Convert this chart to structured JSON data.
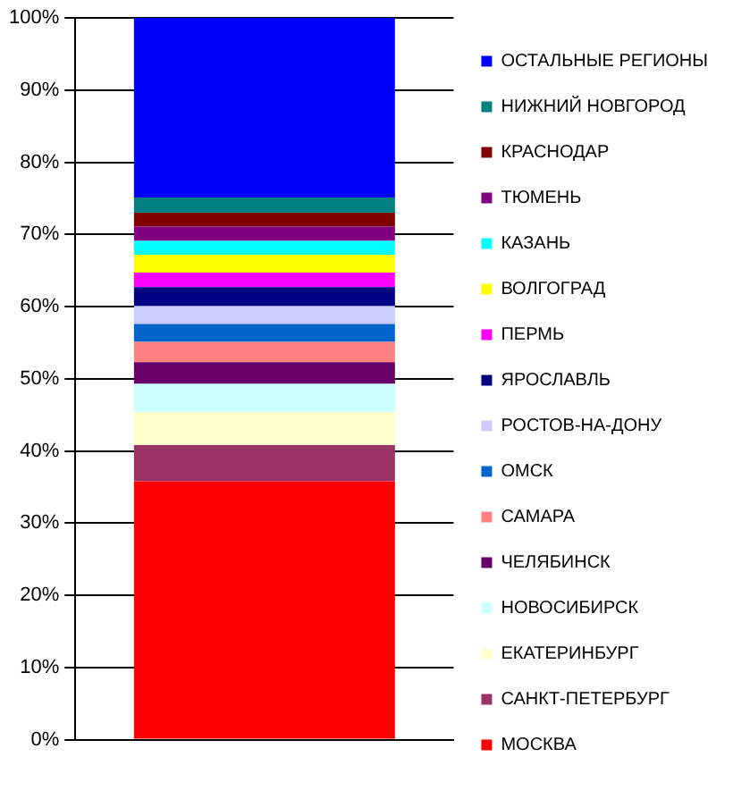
{
  "chart_data": {
    "type": "bar",
    "stacked": true,
    "categories": [
      null
    ],
    "series": [
      {
        "name": "МОСКВА",
        "color": "#ff0000",
        "values": [
          35.8
        ]
      },
      {
        "name": "САНКТ-ПЕТЕРБУРГ",
        "color": "#993366",
        "values": [
          5.0
        ]
      },
      {
        "name": "ЕКАТЕРИНБУРГ",
        "color": "#ffffcc",
        "values": [
          4.6
        ]
      },
      {
        "name": "НОВОСИБИРСК",
        "color": "#ccffff",
        "values": [
          3.9
        ]
      },
      {
        "name": "ЧЕЛЯБИНСК",
        "color": "#660066",
        "values": [
          3.0
        ]
      },
      {
        "name": "САМАРА",
        "color": "#ff8080",
        "values": [
          2.8
        ]
      },
      {
        "name": "ОМСК",
        "color": "#0066cc",
        "values": [
          2.5
        ]
      },
      {
        "name": "РОСТОВ-НА-ДОНУ",
        "color": "#ccccff",
        "values": [
          2.5
        ]
      },
      {
        "name": "ЯРОСЛАВЛЬ",
        "color": "#000080",
        "values": [
          2.6
        ]
      },
      {
        "name": "ПЕРМЬ",
        "color": "#ff00ff",
        "values": [
          2.0
        ]
      },
      {
        "name": "ВОЛГОГРАД",
        "color": "#ffff00",
        "values": [
          2.5
        ]
      },
      {
        "name": "КАЗАНЬ",
        "color": "#00ffff",
        "values": [
          1.9
        ]
      },
      {
        "name": "ТЮМЕНЬ",
        "color": "#800080",
        "values": [
          2.0
        ]
      },
      {
        "name": "КРАСНОДАР",
        "color": "#800000",
        "values": [
          1.9
        ]
      },
      {
        "name": "НИЖНИЙ НОВГОРОД",
        "color": "#008080",
        "values": [
          2.1
        ]
      },
      {
        "name": "ОСТАЛЬНЫЕ РЕГИОНЫ",
        "color": "#0000ff",
        "values": [
          24.9
        ]
      }
    ],
    "ylim": [
      0,
      100
    ],
    "yticks": [
      {
        "value": 0,
        "label": "0%"
      },
      {
        "value": 10,
        "label": "10%"
      },
      {
        "value": 20,
        "label": "20%"
      },
      {
        "value": 30,
        "label": "30%"
      },
      {
        "value": 40,
        "label": "40%"
      },
      {
        "value": 50,
        "label": "50%"
      },
      {
        "value": 60,
        "label": "60%"
      },
      {
        "value": 70,
        "label": "70%"
      },
      {
        "value": 80,
        "label": "80%"
      },
      {
        "value": 90,
        "label": "90%"
      },
      {
        "value": 100,
        "label": "100%"
      }
    ],
    "grid": "y",
    "legend": "right"
  }
}
